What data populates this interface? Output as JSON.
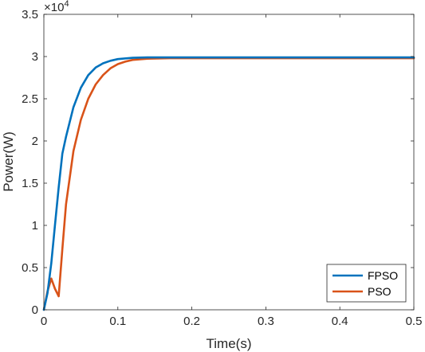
{
  "chart_data": {
    "type": "line",
    "xlabel": "Time(s)",
    "ylabel": "Power(W)",
    "xlim": [
      0,
      0.5
    ],
    "ylim": [
      0,
      3.5
    ],
    "y_multiplier": "×10",
    "y_multiplier_exponent": "4",
    "x_ticks": [
      "0",
      "0.1",
      "0.2",
      "0.3",
      "0.4",
      "0.5"
    ],
    "y_ticks": [
      "0",
      "0.5",
      "1",
      "1.5",
      "2",
      "2.5",
      "3",
      "3.5"
    ],
    "grid": false,
    "legend_position": "bottom-right",
    "series": [
      {
        "name": "FPSO",
        "color": "#0072BD",
        "x": [
          0,
          0.005,
          0.01,
          0.015,
          0.02,
          0.025,
          0.03,
          0.04,
          0.05,
          0.06,
          0.07,
          0.08,
          0.09,
          0.1,
          0.12,
          0.14,
          0.17,
          0.2,
          0.3,
          0.4,
          0.5
        ],
        "y": [
          0,
          0.2,
          0.55,
          1.0,
          1.45,
          1.85,
          2.05,
          2.4,
          2.63,
          2.78,
          2.87,
          2.92,
          2.95,
          2.97,
          2.985,
          2.99,
          2.99,
          2.99,
          2.99,
          2.99,
          2.99
        ]
      },
      {
        "name": "PSO",
        "color": "#D95319",
        "x": [
          0,
          0.005,
          0.01,
          0.015,
          0.02,
          0.025,
          0.03,
          0.04,
          0.05,
          0.06,
          0.07,
          0.08,
          0.09,
          0.1,
          0.11,
          0.12,
          0.14,
          0.17,
          0.2,
          0.3,
          0.4,
          0.5
        ],
        "y": [
          0,
          0.22,
          0.37,
          0.25,
          0.16,
          0.72,
          1.25,
          1.88,
          2.25,
          2.5,
          2.67,
          2.78,
          2.86,
          2.91,
          2.94,
          2.96,
          2.975,
          2.98,
          2.98,
          2.98,
          2.98,
          2.98
        ]
      }
    ]
  }
}
